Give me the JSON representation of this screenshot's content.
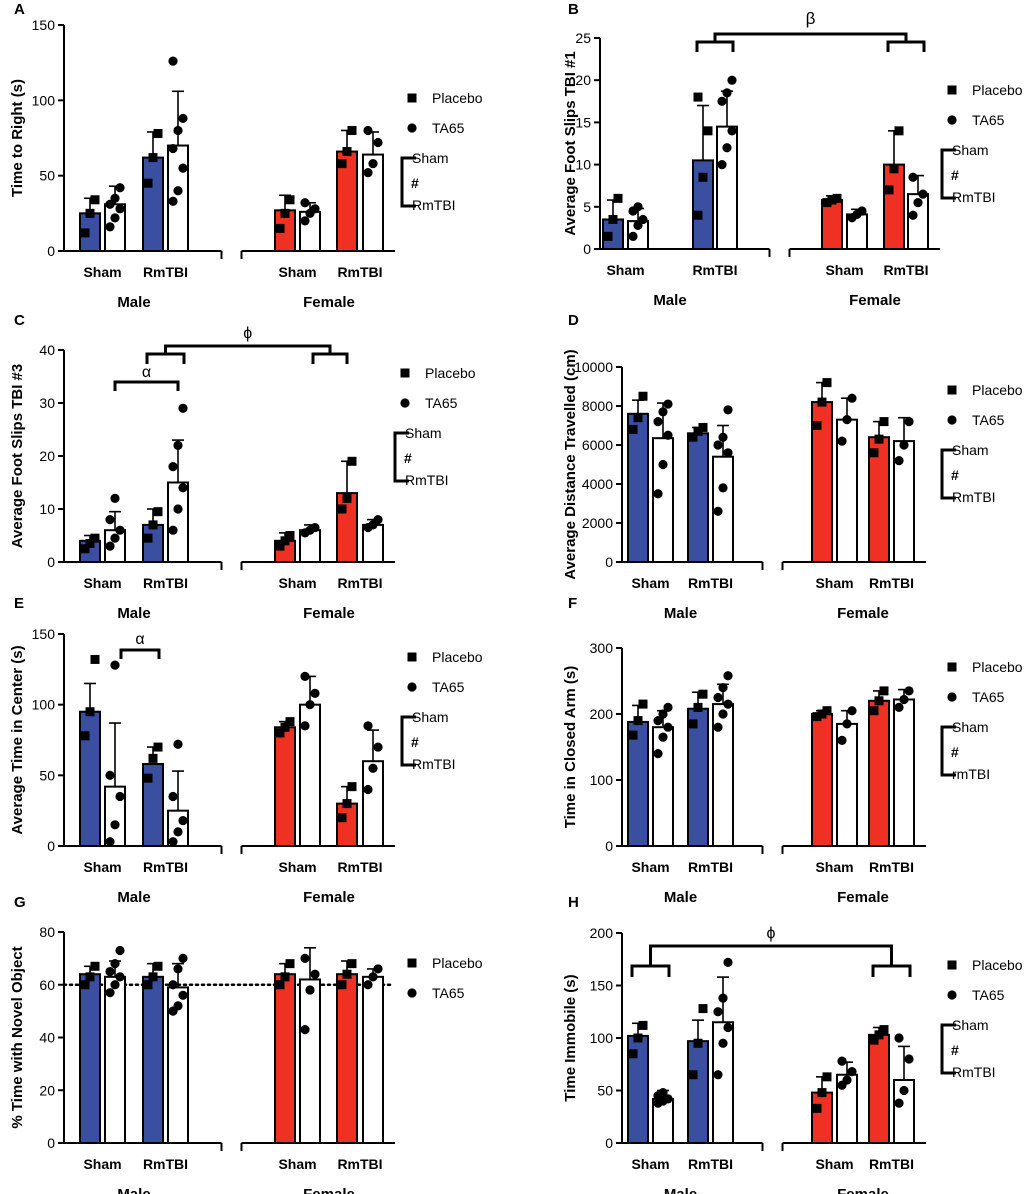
{
  "colors": {
    "male": "#3a4fa0",
    "female": "#ee3123",
    "tta65": "#ffffff",
    "ink": "#000000"
  },
  "legend": {
    "placebo": "Placebo",
    "ta65": "TA65",
    "sham": "Sham",
    "rmtbi": "RmTBI",
    "rmtbi_lower": "rmTBI",
    "hash": "#"
  },
  "chart_data": [
    {
      "id": "A",
      "panel_label": "A",
      "type": "bar",
      "ylabel": "Time to Right (s)",
      "ylim": [
        0,
        150
      ],
      "ticks": [
        0,
        50,
        100,
        150
      ],
      "sex_labels": [
        "Male",
        "Female"
      ],
      "group_labels": [
        "Sham",
        "RmTBI",
        "Sham",
        "RmTBI"
      ],
      "series": [
        {
          "name": "Placebo",
          "values": [
            25,
            62,
            27,
            66
          ]
        },
        {
          "name": "TA65",
          "values": [
            31,
            70,
            26,
            64
          ]
        }
      ],
      "error": [
        [
          10,
          17,
          10,
          14
        ],
        [
          12,
          36,
          6,
          15
        ]
      ],
      "points": [
        [
          [
            12,
            25,
            34
          ],
          [
            45,
            62,
            78
          ],
          [
            15,
            25,
            34
          ],
          [
            58,
            66,
            80
          ]
        ],
        [
          [
            16,
            22,
            28,
            31,
            35,
            42
          ],
          [
            33,
            40,
            55,
            68,
            80,
            88,
            126
          ],
          [
            20,
            25,
            28,
            32
          ],
          [
            52,
            58,
            72,
            80
          ]
        ]
      ],
      "legend_sex_label": "RmTBI",
      "annotations": []
    },
    {
      "id": "B",
      "panel_label": "B",
      "type": "bar",
      "ylabel": "Average Foot Slips TBI #1",
      "ylim": [
        0,
        25
      ],
      "ticks": [
        0,
        5,
        10,
        15,
        20,
        25
      ],
      "sex_labels": [
        "Male",
        "Female"
      ],
      "group_labels": [
        "Sham",
        "RmTBI",
        "Sham",
        "RmTBI"
      ],
      "series": [
        {
          "name": "Placebo",
          "values": [
            3.5,
            10.5,
            5.8,
            10
          ]
        },
        {
          "name": "TA65",
          "values": [
            3.3,
            14.5,
            4.1,
            6.5
          ]
        }
      ],
      "error": [
        [
          2.3,
          6.5,
          0.5,
          4
        ],
        [
          1.5,
          4.2,
          0.6,
          2.2
        ]
      ],
      "points": [
        [
          [
            1.5,
            3.5,
            6
          ],
          [
            4,
            8.5,
            14,
            18
          ],
          [
            5.5,
            5.8,
            6
          ],
          [
            7,
            9.5,
            14
          ]
        ],
        [
          [
            1.5,
            2.8,
            3.5,
            4.5,
            5
          ],
          [
            10,
            12,
            14,
            17.5,
            18.5,
            20
          ],
          [
            3.7,
            4.1,
            4.5
          ],
          [
            4,
            5.5,
            6.5,
            8.5
          ]
        ]
      ],
      "legend_sex_label": "RmTBI",
      "annotations": [
        {
          "symbol": "β",
          "type": "sex"
        }
      ]
    },
    {
      "id": "C",
      "panel_label": "C",
      "type": "bar",
      "ylabel": "Average Foot Slips TBI #3",
      "ylim": [
        0,
        40
      ],
      "ticks": [
        0,
        10,
        20,
        30,
        40
      ],
      "sex_labels": [
        "Male",
        "Female"
      ],
      "group_labels": [
        "Sham",
        "RmTBI",
        "Sham",
        "RmTBI"
      ],
      "series": [
        {
          "name": "Placebo",
          "values": [
            4,
            7,
            4,
            13
          ]
        },
        {
          "name": "TA65",
          "values": [
            6,
            15,
            6,
            7
          ]
        }
      ],
      "error": [
        [
          1,
          3,
          1.5,
          6
        ],
        [
          3.5,
          8,
          1,
          1
        ]
      ],
      "points": [
        [
          [
            2.5,
            3.5,
            4.5
          ],
          [
            4.5,
            7,
            9.5
          ],
          [
            3,
            4,
            5
          ],
          [
            10,
            12,
            19
          ]
        ],
        [
          [
            3,
            4.5,
            6,
            8,
            12
          ],
          [
            6,
            10,
            14,
            18,
            22,
            29
          ],
          [
            5.5,
            6,
            6.5
          ],
          [
            6.5,
            7,
            8
          ]
        ]
      ],
      "legend_sex_label": "RmTBI",
      "annotations": [
        {
          "symbol": "α",
          "type": "injury"
        },
        {
          "symbol": "ϕ",
          "type": "sex"
        }
      ]
    },
    {
      "id": "D",
      "panel_label": "D",
      "type": "bar",
      "ylabel": "Average Distance Travelled (cm)",
      "ylim": [
        0,
        10000
      ],
      "ticks": [
        0,
        2000,
        4000,
        6000,
        8000,
        10000
      ],
      "sex_labels": [
        "Male",
        "Female"
      ],
      "group_labels": [
        "Sham",
        "RmTBI",
        "Sham",
        "RmTBI"
      ],
      "series": [
        {
          "name": "Placebo",
          "values": [
            7600,
            6600,
            8200,
            6400
          ]
        },
        {
          "name": "TA65",
          "values": [
            6350,
            5400,
            7300,
            6200
          ]
        }
      ],
      "error": [
        [
          700,
          300,
          1000,
          800
        ],
        [
          1800,
          1600,
          1100,
          1200
        ]
      ],
      "points": [
        [
          [
            6800,
            7400,
            8500
          ],
          [
            6400,
            6700,
            6900
          ],
          [
            7000,
            8200,
            9200
          ],
          [
            5600,
            6300,
            7200
          ]
        ],
        [
          [
            3500,
            5000,
            6500,
            7200,
            7700,
            8100
          ],
          [
            2600,
            3800,
            5600,
            6000,
            6400,
            7800
          ],
          [
            6200,
            7300,
            8400
          ],
          [
            5200,
            6000,
            7200
          ]
        ]
      ],
      "legend_sex_label": "RmTBI",
      "annotations": []
    },
    {
      "id": "E",
      "panel_label": "E",
      "type": "bar",
      "ylabel": "Average Time in Center (s)",
      "ylim": [
        0,
        150
      ],
      "ticks": [
        0,
        50,
        100,
        150
      ],
      "sex_labels": [
        "Male",
        "Female"
      ],
      "group_labels": [
        "Sham",
        "RmTBI",
        "Sham",
        "RmTBI"
      ],
      "series": [
        {
          "name": "Placebo",
          "values": [
            95,
            58,
            84,
            30
          ]
        },
        {
          "name": "TA65",
          "values": [
            42,
            25,
            100,
            60
          ]
        }
      ],
      "error": [
        [
          20,
          12,
          4,
          12
        ],
        [
          45,
          28,
          20,
          22
        ]
      ],
      "points": [
        [
          [
            78,
            95,
            132
          ],
          [
            48,
            62,
            70
          ],
          [
            80,
            84,
            88
          ],
          [
            20,
            30,
            42
          ]
        ],
        [
          [
            3,
            15,
            35,
            50,
            128
          ],
          [
            3,
            10,
            18,
            35,
            72
          ],
          [
            85,
            100,
            108,
            120
          ],
          [
            40,
            55,
            70,
            85
          ]
        ]
      ],
      "legend_sex_label": "RmTBI",
      "annotations": [
        {
          "symbol": "α",
          "type": "injury_short"
        }
      ]
    },
    {
      "id": "F",
      "panel_label": "F",
      "type": "bar",
      "ylabel": "Time in Closed Arm (s)",
      "ylim": [
        0,
        300
      ],
      "ticks": [
        0,
        100,
        200,
        300
      ],
      "sex_labels": [
        "Male",
        "Female"
      ],
      "group_labels": [
        "Sham",
        "RmTBI",
        "Sham",
        "RmTBI"
      ],
      "series": [
        {
          "name": "Placebo",
          "values": [
            188,
            208,
            200,
            220
          ]
        },
        {
          "name": "TA65",
          "values": [
            180,
            215,
            185,
            222
          ]
        }
      ],
      "error": [
        [
          25,
          25,
          5,
          15
        ],
        [
          25,
          30,
          20,
          15
        ]
      ],
      "points": [
        [
          [
            168,
            190,
            215
          ],
          [
            185,
            210,
            230
          ],
          [
            196,
            200,
            205
          ],
          [
            205,
            220,
            235
          ]
        ],
        [
          [
            140,
            165,
            180,
            190,
            200,
            210
          ],
          [
            180,
            200,
            215,
            225,
            240,
            258
          ],
          [
            160,
            185,
            205
          ],
          [
            210,
            222,
            235
          ]
        ]
      ],
      "legend_sex_label": "rmTBI",
      "annotations": []
    },
    {
      "id": "G",
      "panel_label": "G",
      "type": "bar",
      "ylabel": "% Time with Novel Object",
      "ylim": [
        0,
        80
      ],
      "ticks": [
        0,
        20,
        40,
        60,
        80
      ],
      "sex_labels": [
        "Male",
        "Female"
      ],
      "group_labels": [
        "Sham",
        "RmTBI",
        "Sham",
        "RmTBI"
      ],
      "series": [
        {
          "name": "Placebo",
          "values": [
            64,
            63,
            64,
            64
          ]
        },
        {
          "name": "TA65",
          "values": [
            63,
            59,
            62,
            63
          ]
        }
      ],
      "error": [
        [
          3,
          5,
          4,
          5
        ],
        [
          6,
          9,
          12,
          3
        ]
      ],
      "points": [
        [
          [
            60,
            63,
            67
          ],
          [
            60,
            63,
            67
          ],
          [
            60,
            63,
            68
          ],
          [
            60,
            64,
            68
          ]
        ],
        [
          [
            57,
            60,
            63,
            65,
            68,
            73
          ],
          [
            50,
            52,
            56,
            60,
            66,
            70
          ],
          [
            43,
            58,
            64,
            70
          ],
          [
            60,
            63,
            66
          ]
        ]
      ],
      "reference_line": 60,
      "annotations": []
    },
    {
      "id": "H",
      "panel_label": "H",
      "type": "bar",
      "ylabel": "Time Immobile (s)",
      "ylim": [
        0,
        200
      ],
      "ticks": [
        0,
        50,
        100,
        150,
        200
      ],
      "sex_labels": [
        "Male",
        "Female"
      ],
      "group_labels": [
        "Sham",
        "RmTBI",
        "Sham",
        "RmTBI"
      ],
      "series": [
        {
          "name": "Placebo",
          "values": [
            102,
            97,
            48,
            103
          ]
        },
        {
          "name": "TA65",
          "values": [
            42,
            115,
            65,
            60
          ]
        }
      ],
      "error": [
        [
          12,
          20,
          15,
          7
        ],
        [
          8,
          43,
          12,
          32
        ]
      ],
      "points": [
        [
          [
            85,
            100,
            112
          ],
          [
            65,
            95,
            128
          ],
          [
            33,
            48,
            63
          ],
          [
            98,
            103,
            108
          ]
        ],
        [
          [
            38,
            40,
            42,
            45,
            48
          ],
          [
            65,
            95,
            110,
            125,
            138,
            172
          ],
          [
            55,
            60,
            68,
            78
          ],
          [
            38,
            50,
            80,
            100
          ]
        ]
      ],
      "legend_sex_label": "RmTBI",
      "annotations": [
        {
          "symbol": "ϕ",
          "type": "treatment"
        }
      ]
    }
  ]
}
